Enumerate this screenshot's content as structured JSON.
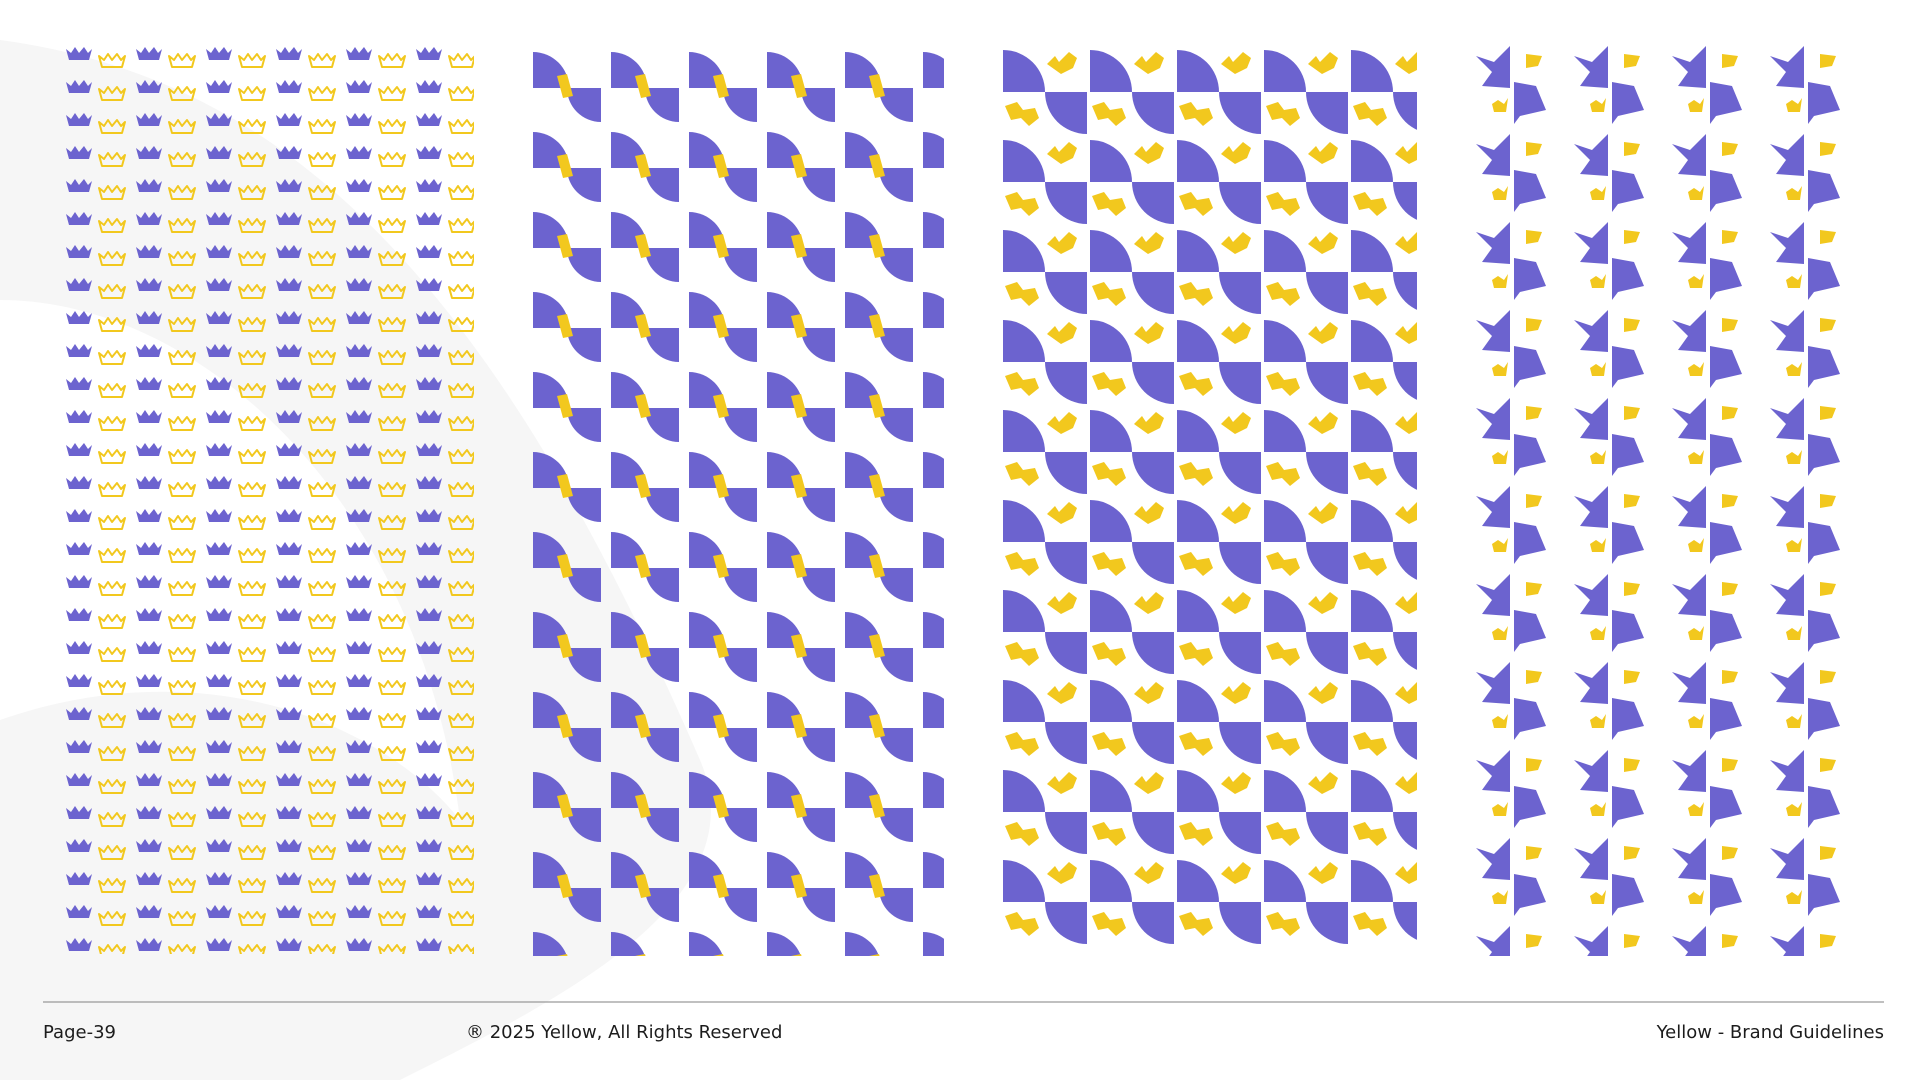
{
  "footer": {
    "page": "Page-39",
    "copyright": "® 2025 Yellow, All Rights Reserved",
    "brand": "Yellow - Brand Guidelines"
  }
}
